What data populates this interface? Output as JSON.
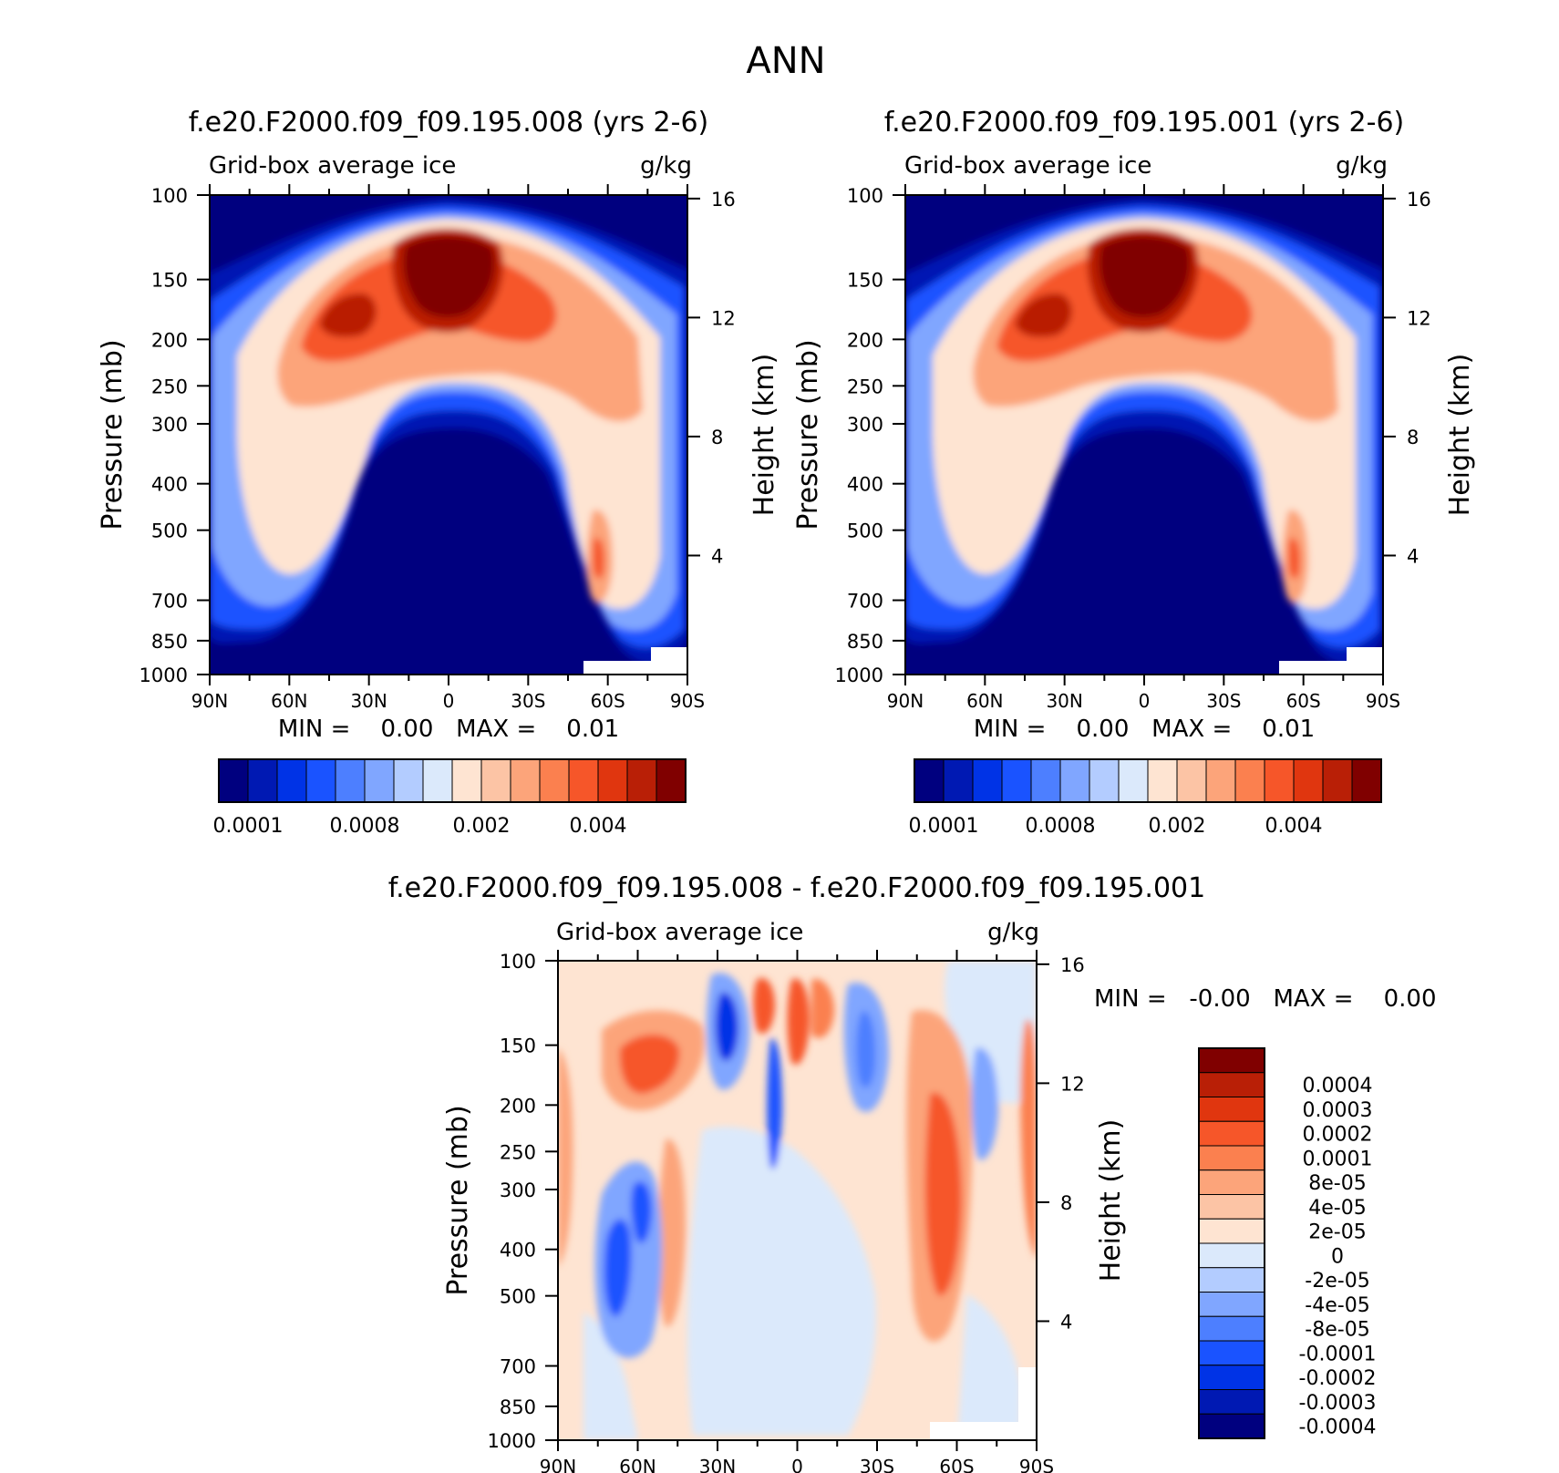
{
  "figure_title": "ANN",
  "chart_data": [
    {
      "type": "heatmap",
      "title": "f.e20.F2000.f09_f09.195.008 (yrs 2-6)",
      "subtitle_left": "Grid-box average ice",
      "subtitle_right": "g/kg",
      "ylabel": "Pressure (mb)",
      "ylabel_right": "Height (km)",
      "x_ticks": [
        "90N",
        "60N",
        "30N",
        "0",
        "30S",
        "60S",
        "90S"
      ],
      "x_range": [
        90,
        -90
      ],
      "y_ticks": [
        100,
        150,
        200,
        250,
        300,
        400,
        500,
        700,
        850,
        1000
      ],
      "y_range": [
        100,
        1000
      ],
      "height_ticks": [
        16,
        12,
        8,
        4
      ],
      "stats": "MIN =    0.00   MAX =    0.01",
      "colorbar_orientation": "horizontal",
      "colorbar_colors": [
        "#00007f",
        "#0019b3",
        "#0033e6",
        "#1a53ff",
        "#4d7fff",
        "#80a6ff",
        "#b3ccff",
        "#dbe9fb",
        "#fee4d2",
        "#fcc4a5",
        "#fca47a",
        "#fb804f",
        "#f65629",
        "#e0360f",
        "#b91f06",
        "#800000"
      ],
      "colorbar_labels": [
        "0.0001",
        "0.0008",
        "0.002",
        "0.004"
      ]
    },
    {
      "type": "heatmap",
      "title": "f.e20.F2000.f09_f09.195.001 (yrs 2-6)",
      "subtitle_left": "Grid-box average ice",
      "subtitle_right": "g/kg",
      "ylabel": "Pressure (mb)",
      "ylabel_right": "Height (km)",
      "x_ticks": [
        "90N",
        "60N",
        "30N",
        "0",
        "30S",
        "60S",
        "90S"
      ],
      "x_range": [
        90,
        -90
      ],
      "y_ticks": [
        100,
        150,
        200,
        250,
        300,
        400,
        500,
        700,
        850,
        1000
      ],
      "y_range": [
        100,
        1000
      ],
      "height_ticks": [
        16,
        12,
        8,
        4
      ],
      "stats": "MIN =    0.00   MAX =    0.01",
      "colorbar_orientation": "horizontal",
      "colorbar_colors": [
        "#00007f",
        "#0019b3",
        "#0033e6",
        "#1a53ff",
        "#4d7fff",
        "#80a6ff",
        "#b3ccff",
        "#dbe9fb",
        "#fee4d2",
        "#fcc4a5",
        "#fca47a",
        "#fb804f",
        "#f65629",
        "#e0360f",
        "#b91f06",
        "#800000"
      ],
      "colorbar_labels": [
        "0.0001",
        "0.0008",
        "0.002",
        "0.004"
      ]
    },
    {
      "type": "heatmap",
      "title": "f.e20.F2000.f09_f09.195.008 - f.e20.F2000.f09_f09.195.001",
      "subtitle_left": "Grid-box average ice",
      "subtitle_right": "g/kg",
      "ylabel": "Pressure (mb)",
      "ylabel_right": "Height (km)",
      "x_ticks": [
        "90N",
        "60N",
        "30N",
        "0",
        "30S",
        "60S",
        "90S"
      ],
      "x_range": [
        90,
        -90
      ],
      "y_ticks": [
        100,
        150,
        200,
        250,
        300,
        400,
        500,
        700,
        850,
        1000
      ],
      "y_range": [
        100,
        1000
      ],
      "height_ticks": [
        16,
        12,
        8,
        4
      ],
      "stats": "MIN =   -0.00   MAX =    0.00",
      "colorbar_orientation": "vertical",
      "colorbar_colors": [
        "#800000",
        "#b91f06",
        "#e0360f",
        "#f65629",
        "#fb804f",
        "#fca47a",
        "#fcc4a5",
        "#fee4d2",
        "#dbe9fb",
        "#b3ccff",
        "#80a6ff",
        "#4d7fff",
        "#1a53ff",
        "#0033e6",
        "#0019b3",
        "#00007f"
      ],
      "colorbar_labels": [
        "0.0004",
        "0.0003",
        "0.0002",
        "0.0001",
        "8e-05",
        "4e-05",
        "2e-05",
        "0",
        "-2e-05",
        "-4e-05",
        "-8e-05",
        "-0.0001",
        "-0.0002",
        "-0.0003",
        "-0.0004"
      ]
    }
  ]
}
